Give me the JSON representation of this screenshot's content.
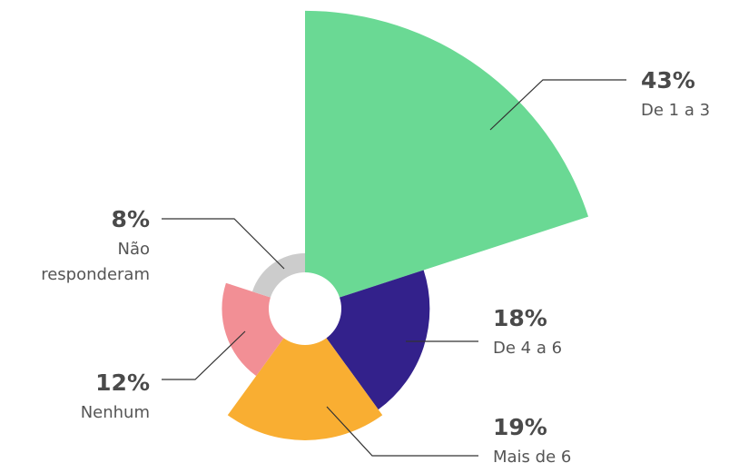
{
  "chart_data": {
    "type": "rose",
    "categories": [
      "De 1 a 3",
      "De 4 a 6",
      "Mais de 6",
      "Nenhum",
      "Não responderam"
    ],
    "values": [
      43,
      18,
      19,
      12,
      8
    ],
    "value_labels": [
      "43%",
      "18%",
      "19%",
      "12%",
      "8%"
    ],
    "colors": [
      "#6ad994",
      "#33218b",
      "#f9ae32",
      "#f28f95",
      "#cccccc"
    ]
  }
}
